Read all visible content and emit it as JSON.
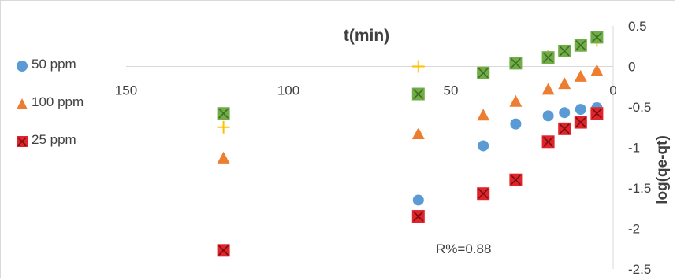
{
  "chart_data": {
    "type": "scatter",
    "title": "",
    "xlabel": "t(min)",
    "ylabel": "log(qe-qt)",
    "xlim": [
      150,
      0
    ],
    "ylim": [
      -2.5,
      0.5
    ],
    "x_reversed": true,
    "y_axis_position": "right",
    "x_axis_crosses_at": 0,
    "xticks": [
      "150",
      "100",
      "50",
      "0"
    ],
    "yticks": [
      "0.5",
      "0",
      "-0.5",
      "-1",
      "-1.5",
      "-2",
      "-2.5"
    ],
    "grid": false,
    "legend_position": "left",
    "annotation": "R%=0.88",
    "series": [
      {
        "name": "50 ppm",
        "marker": "circle",
        "color": "#5B9BD5",
        "points": [
          [
            60,
            -1.65
          ],
          [
            40,
            -0.98
          ],
          [
            30,
            -0.71
          ],
          [
            20,
            -0.61
          ],
          [
            15,
            -0.57
          ],
          [
            10,
            -0.53
          ],
          [
            5,
            -0.51
          ]
        ]
      },
      {
        "name": "100 ppm",
        "marker": "triangle",
        "color": "#ED7D31",
        "points": [
          [
            120,
            -1.13
          ],
          [
            60,
            -0.83
          ],
          [
            40,
            -0.6
          ],
          [
            30,
            -0.43
          ],
          [
            20,
            -0.28
          ],
          [
            15,
            -0.21
          ],
          [
            10,
            -0.12
          ],
          [
            5,
            -0.05
          ]
        ]
      },
      {
        "name": "25 ppm",
        "marker": "x-square",
        "color": "#E0242B",
        "points": [
          [
            120,
            -2.27
          ],
          [
            60,
            -1.85
          ],
          [
            40,
            -1.57
          ],
          [
            30,
            -1.4
          ],
          [
            20,
            -0.93
          ],
          [
            15,
            -0.77
          ],
          [
            10,
            -0.69
          ],
          [
            5,
            -0.58
          ]
        ]
      },
      {
        "name": "",
        "marker": "plus",
        "color": "#FFC000",
        "points": [
          [
            120,
            -0.75
          ],
          [
            60,
            0.0
          ],
          [
            40,
            -0.08
          ],
          [
            30,
            0.04
          ],
          [
            20,
            0.12
          ],
          [
            15,
            0.19
          ],
          [
            10,
            0.26
          ],
          [
            5,
            0.32
          ]
        ]
      },
      {
        "name": "",
        "marker": "x-square",
        "color": "#70AD47",
        "points": [
          [
            120,
            -0.58
          ],
          [
            60,
            -0.34
          ],
          [
            40,
            -0.08
          ],
          [
            30,
            0.04
          ],
          [
            20,
            0.11
          ],
          [
            15,
            0.19
          ],
          [
            10,
            0.26
          ],
          [
            5,
            0.36
          ]
        ]
      }
    ]
  }
}
